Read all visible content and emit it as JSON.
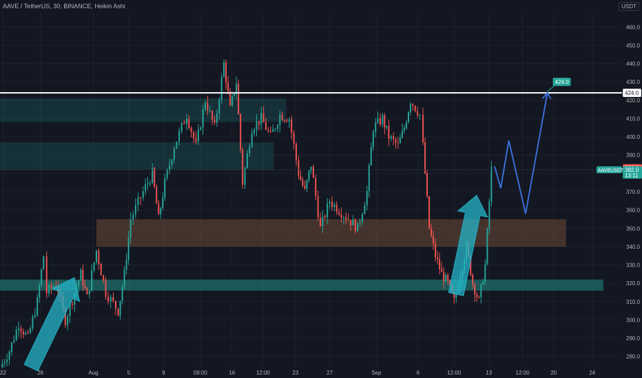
{
  "header": {
    "title": "AAVE / TetherUS, 30, BINANCE, Heikin Ashi"
  },
  "currency": "USDT",
  "colors": {
    "bg": "#131722",
    "grid": "#1e222d",
    "up": "#26a69a",
    "down": "#ef5350",
    "axis_text": "#b2b5be"
  },
  "chart_data": {
    "type": "candlestick",
    "title": "AAVE / TetherUS, 30, BINANCE, Heikin Ashi",
    "symbol": "AAVEUSDT",
    "ylim": [
      275,
      468
    ],
    "y_ticks": [
      280,
      290,
      300,
      310,
      320,
      330,
      340,
      350,
      360,
      370,
      380,
      390,
      400,
      410,
      420,
      430,
      440,
      450,
      460
    ],
    "x_ticks": [
      "22",
      "26",
      "Aug",
      "5",
      "9",
      "09:00",
      "16",
      "12:00",
      "23",
      "27",
      "Sep",
      "6",
      "12:00",
      "13",
      "12:00",
      "20",
      "24"
    ],
    "price_path": [
      [
        0.0,
        274
      ],
      [
        0.015,
        283
      ],
      [
        0.03,
        298
      ],
      [
        0.045,
        290
      ],
      [
        0.06,
        310
      ],
      [
        0.07,
        335
      ],
      [
        0.075,
        315
      ],
      [
        0.09,
        320
      ],
      [
        0.105,
        300
      ],
      [
        0.12,
        315
      ],
      [
        0.13,
        325
      ],
      [
        0.14,
        312
      ],
      [
        0.155,
        338
      ],
      [
        0.17,
        315
      ],
      [
        0.19,
        305
      ],
      [
        0.2,
        325
      ],
      [
        0.21,
        355
      ],
      [
        0.23,
        370
      ],
      [
        0.245,
        380
      ],
      [
        0.255,
        355
      ],
      [
        0.265,
        375
      ],
      [
        0.28,
        395
      ],
      [
        0.3,
        412
      ],
      [
        0.315,
        395
      ],
      [
        0.33,
        420
      ],
      [
        0.345,
        405
      ],
      [
        0.36,
        440
      ],
      [
        0.37,
        415
      ],
      [
        0.38,
        430
      ],
      [
        0.39,
        375
      ],
      [
        0.405,
        405
      ],
      [
        0.42,
        410
      ],
      [
        0.435,
        400
      ],
      [
        0.45,
        412
      ],
      [
        0.465,
        410
      ],
      [
        0.48,
        380
      ],
      [
        0.49,
        370
      ],
      [
        0.5,
        385
      ],
      [
        0.515,
        350
      ],
      [
        0.53,
        365
      ],
      [
        0.545,
        360
      ],
      [
        0.56,
        355
      ],
      [
        0.575,
        350
      ],
      [
        0.59,
        370
      ],
      [
        0.6,
        405
      ],
      [
        0.615,
        410
      ],
      [
        0.625,
        400
      ],
      [
        0.64,
        395
      ],
      [
        0.65,
        405
      ],
      [
        0.66,
        420
      ],
      [
        0.675,
        412
      ],
      [
        0.68,
        395
      ],
      [
        0.69,
        350
      ],
      [
        0.7,
        335
      ],
      [
        0.71,
        325
      ],
      [
        0.72,
        320
      ],
      [
        0.73,
        310
      ],
      [
        0.74,
        325
      ],
      [
        0.75,
        340
      ],
      [
        0.76,
        320
      ],
      [
        0.77,
        310
      ],
      [
        0.78,
        330
      ],
      [
        0.79,
        382
      ]
    ],
    "last_price": {
      "label": "AAVEUSDT",
      "value": "382.0",
      "countdown": "13:11",
      "bid_marker": "382.8"
    },
    "resistance": {
      "value": 424,
      "label": "424.0"
    },
    "target": {
      "value": 424,
      "label": "424.0"
    },
    "zones": [
      {
        "type": "resistance",
        "from": 408,
        "to": 421
      },
      {
        "type": "resistance",
        "from": 382,
        "to": 397
      },
      {
        "type": "entry",
        "from": 340,
        "to": 355
      },
      {
        "type": "support",
        "from": 316,
        "to": 322
      }
    ],
    "projection_path": [
      [
        0.795,
        384
      ],
      [
        0.805,
        372
      ],
      [
        0.818,
        398
      ],
      [
        0.845,
        358
      ],
      [
        0.88,
        424
      ]
    ]
  }
}
